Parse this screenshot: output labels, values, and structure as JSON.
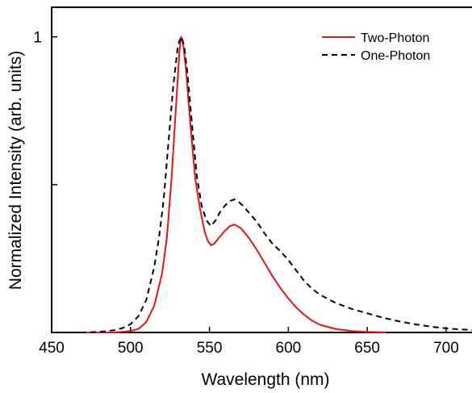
{
  "chart_data": {
    "type": "line",
    "xlabel": "Wavelength (nm)",
    "ylabel": "Normalized Intensity (arb. units)",
    "xlim": [
      450,
      721
    ],
    "ylim": [
      0,
      1.1
    ],
    "x_ticks": [
      450,
      500,
      550,
      600,
      650,
      700
    ],
    "x_tick_labels": [
      "450",
      "500",
      "550",
      "600",
      "650",
      "700"
    ],
    "y_ticks": [
      0,
      0.5,
      1
    ],
    "y_tick_labels": [
      "",
      "",
      "1"
    ],
    "legend": {
      "position": "top-right"
    },
    "series": [
      {
        "name": "Two-Photon",
        "color": "#e8121b",
        "style": "solid",
        "points": [
          [
            470,
            0
          ],
          [
            490,
            0
          ],
          [
            500,
            0.005
          ],
          [
            505,
            0.012
          ],
          [
            510,
            0.035
          ],
          [
            515,
            0.09
          ],
          [
            520,
            0.2
          ],
          [
            523,
            0.32
          ],
          [
            526,
            0.52
          ],
          [
            529,
            0.78
          ],
          [
            531,
            0.95
          ],
          [
            532,
            1.0
          ],
          [
            533,
            0.99
          ],
          [
            535,
            0.9
          ],
          [
            538,
            0.7
          ],
          [
            541,
            0.52
          ],
          [
            544,
            0.42
          ],
          [
            547,
            0.34
          ],
          [
            549,
            0.31
          ],
          [
            551,
            0.295
          ],
          [
            553,
            0.3
          ],
          [
            556,
            0.32
          ],
          [
            560,
            0.345
          ],
          [
            563,
            0.36
          ],
          [
            566,
            0.365
          ],
          [
            570,
            0.352
          ],
          [
            575,
            0.32
          ],
          [
            580,
            0.28
          ],
          [
            585,
            0.235
          ],
          [
            590,
            0.19
          ],
          [
            595,
            0.15
          ],
          [
            600,
            0.115
          ],
          [
            605,
            0.085
          ],
          [
            610,
            0.06
          ],
          [
            615,
            0.04
          ],
          [
            620,
            0.026
          ],
          [
            630,
            0.012
          ],
          [
            640,
            0.005
          ],
          [
            650,
            0.002
          ],
          [
            662,
            0
          ]
        ]
      },
      {
        "name": "One-Photon",
        "color": "#000000",
        "style": "dashed",
        "points": [
          [
            450,
            0
          ],
          [
            470,
            0
          ],
          [
            480,
            0.002
          ],
          [
            490,
            0.008
          ],
          [
            495,
            0.015
          ],
          [
            500,
            0.028
          ],
          [
            505,
            0.055
          ],
          [
            510,
            0.11
          ],
          [
            515,
            0.22
          ],
          [
            518,
            0.32
          ],
          [
            521,
            0.45
          ],
          [
            524,
            0.64
          ],
          [
            527,
            0.83
          ],
          [
            530,
            0.97
          ],
          [
            532,
            1.0
          ],
          [
            534,
            0.97
          ],
          [
            536,
            0.88
          ],
          [
            539,
            0.7
          ],
          [
            542,
            0.53
          ],
          [
            545,
            0.43
          ],
          [
            548,
            0.38
          ],
          [
            551,
            0.36
          ],
          [
            554,
            0.38
          ],
          [
            557,
            0.41
          ],
          [
            560,
            0.43
          ],
          [
            563,
            0.445
          ],
          [
            566,
            0.45
          ],
          [
            569,
            0.44
          ],
          [
            572,
            0.425
          ],
          [
            575,
            0.405
          ],
          [
            580,
            0.375
          ],
          [
            585,
            0.335
          ],
          [
            590,
            0.3
          ],
          [
            595,
            0.275
          ],
          [
            600,
            0.245
          ],
          [
            605,
            0.21
          ],
          [
            610,
            0.175
          ],
          [
            615,
            0.148
          ],
          [
            620,
            0.128
          ],
          [
            630,
            0.1
          ],
          [
            640,
            0.08
          ],
          [
            650,
            0.065
          ],
          [
            660,
            0.05
          ],
          [
            670,
            0.038
          ],
          [
            680,
            0.028
          ],
          [
            690,
            0.02
          ],
          [
            700,
            0.014
          ],
          [
            710,
            0.01
          ],
          [
            721,
            0.007
          ]
        ]
      }
    ]
  }
}
